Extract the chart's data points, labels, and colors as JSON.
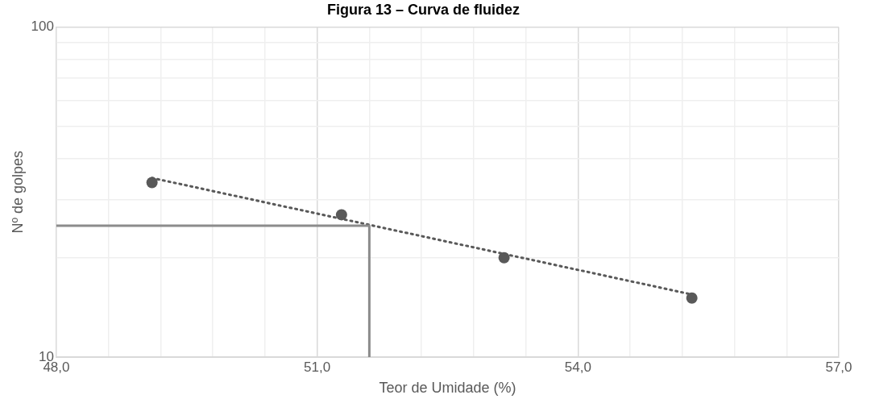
{
  "chart_data": {
    "type": "scatter",
    "title": "Figura 13 – Curva de fluidez",
    "xlabel": "Teor de Umidade (%)",
    "ylabel": "Nº de golpes",
    "log": "y",
    "grid": true,
    "legend": false,
    "marker": "circle",
    "xlim": [
      48,
      57
    ],
    "xticks": [
      {
        "value": 48,
        "label": "48,0"
      },
      {
        "value": 48.6,
        "label": null
      },
      {
        "value": 49.2,
        "label": null
      },
      {
        "value": 49.8,
        "label": null
      },
      {
        "value": 50.4,
        "label": null
      },
      {
        "value": 51,
        "label": "51,0"
      },
      {
        "value": 51.6,
        "label": null
      },
      {
        "value": 52.2,
        "label": null
      },
      {
        "value": 52.8,
        "label": null
      },
      {
        "value": 53.4,
        "label": null
      },
      {
        "value": 54,
        "label": "54,0"
      },
      {
        "value": 54.6,
        "label": null
      },
      {
        "value": 55.2,
        "label": null
      },
      {
        "value": 55.8,
        "label": null
      },
      {
        "value": 56.4,
        "label": null
      },
      {
        "value": 57,
        "label": "57,0"
      }
    ],
    "ylim": [
      10,
      100
    ],
    "yticks": [
      10,
      {
        "value": 20,
        "label": null
      },
      {
        "value": 30,
        "label": null
      },
      {
        "value": 40,
        "label": null
      },
      {
        "value": 50,
        "label": null
      },
      {
        "value": 60,
        "label": null
      },
      {
        "value": 70,
        "label": null
      },
      {
        "value": 80,
        "label": null
      },
      {
        "value": 90,
        "label": null
      },
      100
    ],
    "series": [
      {
        "color": "#595959",
        "x": [
          49.1,
          51.28,
          53.15,
          55.31
        ],
        "values": [
          33.8,
          27,
          20,
          15.1
        ]
      },
      {
        "type": "line",
        "color": "#595959",
        "marker": "none",
        "line_style": "dotted",
        "x": [
          49.1,
          55.35
        ],
        "values": [
          34.9,
          15.4
        ]
      },
      {
        "type": "line",
        "color": "#8c8c8c",
        "marker": "none",
        "line_style": "solid",
        "x": [
          48,
          51.6,
          51.6
        ],
        "values": [
          25,
          25,
          10
        ]
      }
    ]
  }
}
